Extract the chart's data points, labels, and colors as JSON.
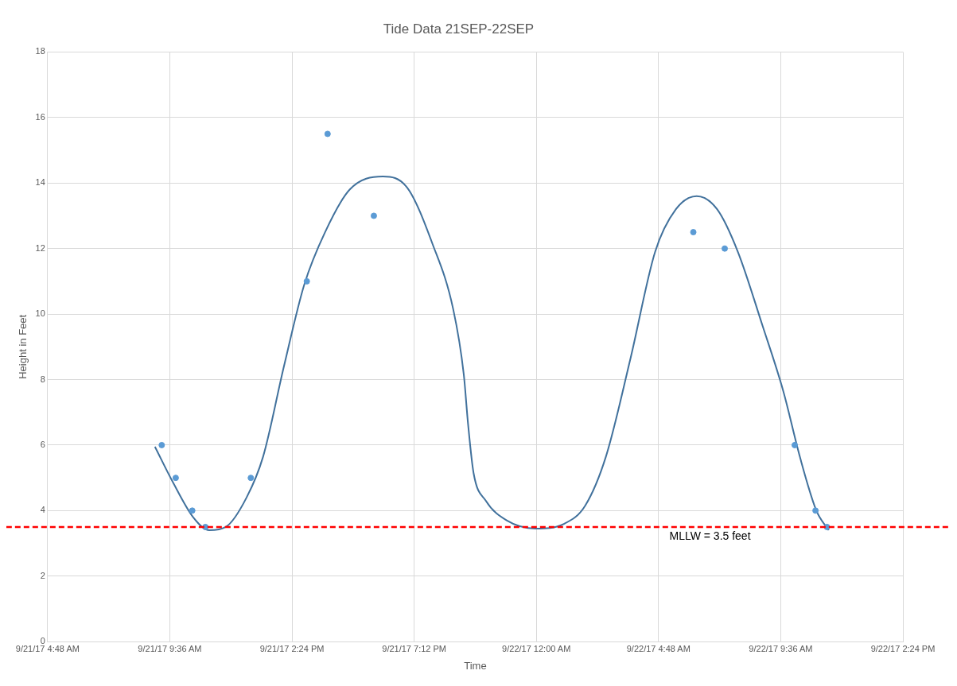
{
  "chart_data": {
    "type": "scatter",
    "title": "Tide Data 21SEP-22SEP",
    "xlabel": "Time",
    "ylabel": "Height in Feet",
    "xlim": [
      "--09-21T04:48",
      "--09-22T14:24"
    ],
    "xticks": [
      {
        "value": "--09-21T04:48",
        "label": "9/21/17 4:48 AM"
      },
      {
        "value": "--09-21T09:36",
        "label": "9/21/17 9:36 AM"
      },
      {
        "value": "--09-21T14:24",
        "label": "9/21/17 2:24 PM"
      },
      {
        "value": "--09-21T19:12",
        "label": "9/21/17 7:12 PM"
      },
      {
        "value": "--09-22T00:00",
        "label": "9/22/17 12:00 AM"
      },
      {
        "value": "--09-22T04:48",
        "label": "9/22/17 4:48 AM"
      },
      {
        "value": "--09-22T09:36",
        "label": "9/22/17 9:36 AM"
      },
      {
        "value": "--09-22T14:24",
        "label": "9/22/17 2:24 PM"
      }
    ],
    "ylim": [
      0,
      18
    ],
    "yticks": [
      0,
      2,
      4,
      6,
      8,
      10,
      12,
      14,
      16,
      18
    ],
    "grid": true,
    "marker": "circle",
    "series": [
      {
        "color": "#5b9bd5",
        "x": [
          "--09-21T09:17",
          "--09-21T09:50",
          "--09-21T10:29",
          "--09-21T11:00",
          "--09-21T12:47",
          "--09-21T14:59",
          "--09-21T15:48",
          "--09-21T17:37",
          "--09-22T06:10",
          "--09-22T07:24",
          "--09-22T10:09",
          "--09-22T10:58",
          "--09-22T11:25"
        ],
        "values": [
          6,
          5,
          4,
          3.5,
          5,
          11,
          15.5,
          13,
          12.5,
          12,
          6,
          4,
          3.5
        ]
      },
      {
        "type": "line",
        "marker": "none",
        "color": "#41719c",
        "x": [
          "--09-21T09:01",
          "--09-21T09:42",
          "--09-21T10:31",
          "--09-21T11:09",
          "--09-21T11:48",
          "--09-21T12:37",
          "--09-21T13:16",
          "--09-21T14:05",
          "--09-21T14:53",
          "--09-21T15:42",
          "--09-21T16:40",
          "--09-21T17:58",
          "--09-21T18:56",
          "--09-21T19:55",
          "--09-21T20:44",
          "--09-21T21:09",
          "--09-21T21:19",
          "--09-21T21:32",
          "--09-21T22:01",
          "--09-21T22:50",
          "--09-21T23:58",
          "--09-22T01:06",
          "--09-22T01:55",
          "--09-22T02:44",
          "--09-22T03:42",
          "--09-22T04:40",
          "--09-22T05:29",
          "--09-22T06:18",
          "--09-22T07:06",
          "--09-22T07:55",
          "--09-22T08:53",
          "--09-22T09:42",
          "--09-22T10:21",
          "--09-22T11:00",
          "--09-22T11:29"
        ],
        "values": [
          5.95,
          4.9,
          3.8,
          3.4,
          3.5,
          4.4,
          5.65,
          8.4,
          10.9,
          12.5,
          13.8,
          14.2,
          13.85,
          12.15,
          10.15,
          8.15,
          6.65,
          5.15,
          4.3,
          3.7,
          3.45,
          3.6,
          4.15,
          5.65,
          8.65,
          11.9,
          13.2,
          13.6,
          13.2,
          11.9,
          9.65,
          7.65,
          5.65,
          4,
          3.4
        ]
      }
    ],
    "ref_lines": [
      {
        "axis": "y",
        "value": 3.5,
        "label": "MLLW = 3.5 feet",
        "color": "#ff0000",
        "line_style": "dashed"
      }
    ]
  }
}
